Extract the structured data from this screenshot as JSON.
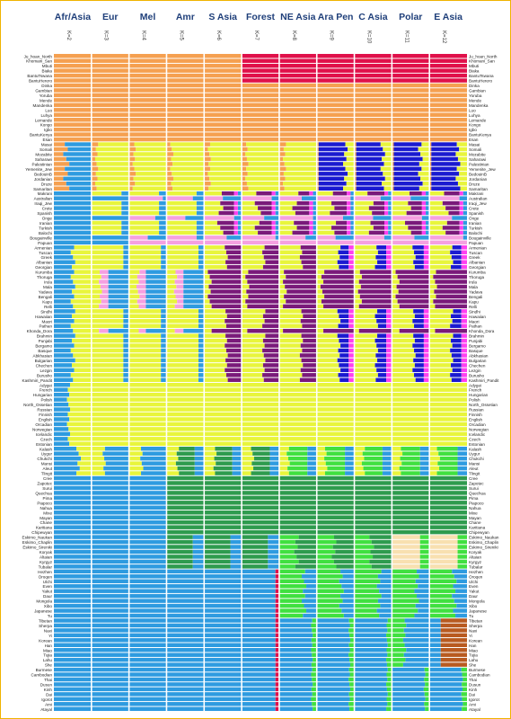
{
  "chart_data": {
    "type": "bar",
    "stacked": true,
    "orientation": "horizontal",
    "title": "",
    "columns": [
      {
        "header": "Afr/Asia",
        "k": "K=2"
      },
      {
        "header": "Eur",
        "k": "K=3"
      },
      {
        "header": "Mel",
        "k": "K=4"
      },
      {
        "header": "Amr",
        "k": "K=5"
      },
      {
        "header": "S Asia",
        "k": "K=6"
      },
      {
        "header": "Forest",
        "k": "K=7"
      },
      {
        "header": "NE Asia",
        "k": "K=8"
      },
      {
        "header": "Ara Pen",
        "k": "K=9"
      },
      {
        "header": "C Asia",
        "k": "K=10"
      },
      {
        "header": "Polar",
        "k": "K=11"
      },
      {
        "header": "E Asia",
        "k": "K=12"
      }
    ],
    "component_colors": {
      "African": "#f5a050",
      "Afr_Asia": "#2e9be0",
      "Eur": "#e8f53c",
      "Mel": "#f5a0e0",
      "Amr": "#2e9b4e",
      "S_Asia": "#7a1a7a",
      "Forest": "#e0104a",
      "NE_Asia": "#40e040",
      "Ara_Pen": "#1a1ad0",
      "C_Asia": "#ff40f0",
      "Polar": "#f8e0b0",
      "E_Asia": "#b85a20"
    },
    "populations": [
      "Ju_hoan_North",
      "Khomani_San",
      "Mbuti",
      "Biaka",
      "BantuTswana",
      "BantuHerero",
      "Dinka",
      "Gambian",
      "Yoruba",
      "Mende",
      "Mandenka",
      "Luo",
      "Luhya",
      "Lemande",
      "Kongo",
      "Igbo",
      "BantuKenya",
      "Esan",
      "Masai",
      "Somali",
      "Mozabite",
      "Saharawi",
      "Palestinian",
      "Yemenite_Jew",
      "BedouinB",
      "Jordanian",
      "Druze",
      "Samaritan",
      "Makrani",
      "Australian",
      "Iraqi_Jew",
      "Crete",
      "Spanish",
      "Onge",
      "Iranian",
      "Turkish",
      "Balochi",
      "Bougainville",
      "Papuan",
      "Armenian",
      "Tuscan",
      "Greek",
      "Albanian",
      "Georgian",
      "Kurumba",
      "Thoruga",
      "Irula",
      "Mala",
      "Yadava",
      "Bengali",
      "Kapu",
      "Relli",
      "Sindhi",
      "Hawaiian",
      "Maori",
      "Pathan",
      "Khonda_Dora",
      "Brahmin",
      "Punjabi",
      "Bergamo",
      "Basque",
      "Abkhasian",
      "Bulgarian",
      "Chechen",
      "Lezgin",
      "Burusho",
      "Kashmiri_Pandit",
      "Adygei",
      "French",
      "Hungarian",
      "Polish",
      "North_Ossetian",
      "Russian",
      "Finnish",
      "English",
      "Orcadian",
      "Norwegian",
      "Icelandic",
      "Czech",
      "Estonian",
      "Kalash",
      "Uygur",
      "Chukchi",
      "Mansi",
      "Aleut",
      "Tlingit",
      "Cree",
      "Zapotec",
      "Surui",
      "Quechua",
      "Pima",
      "Piapoco",
      "Nahua",
      "Mixe",
      "Mayan",
      "Chane",
      "Karitiana",
      "Chipewyan",
      "Eskimo_Naukan",
      "Eskimo_Chaplin",
      "Eskimo_Sireniki",
      "Koryak",
      "Altaian",
      "Kyrgyz",
      "Tubalar",
      "Hezhen",
      "Oroqen",
      "Ulchi",
      "Even",
      "Yakut",
      "Daur",
      "Mongola",
      "Xibo",
      "Japanese",
      "Tu",
      "Tibetan",
      "Sherpa",
      "Naxi",
      "Yi",
      "Korean",
      "Han",
      "Miao",
      "Tujia",
      "Lahu",
      "She",
      "Burmese",
      "Cambodian",
      "Thai",
      "Dusun",
      "Kinh",
      "Dai",
      "Igorot",
      "Ami",
      "Atayal"
    ]
  }
}
